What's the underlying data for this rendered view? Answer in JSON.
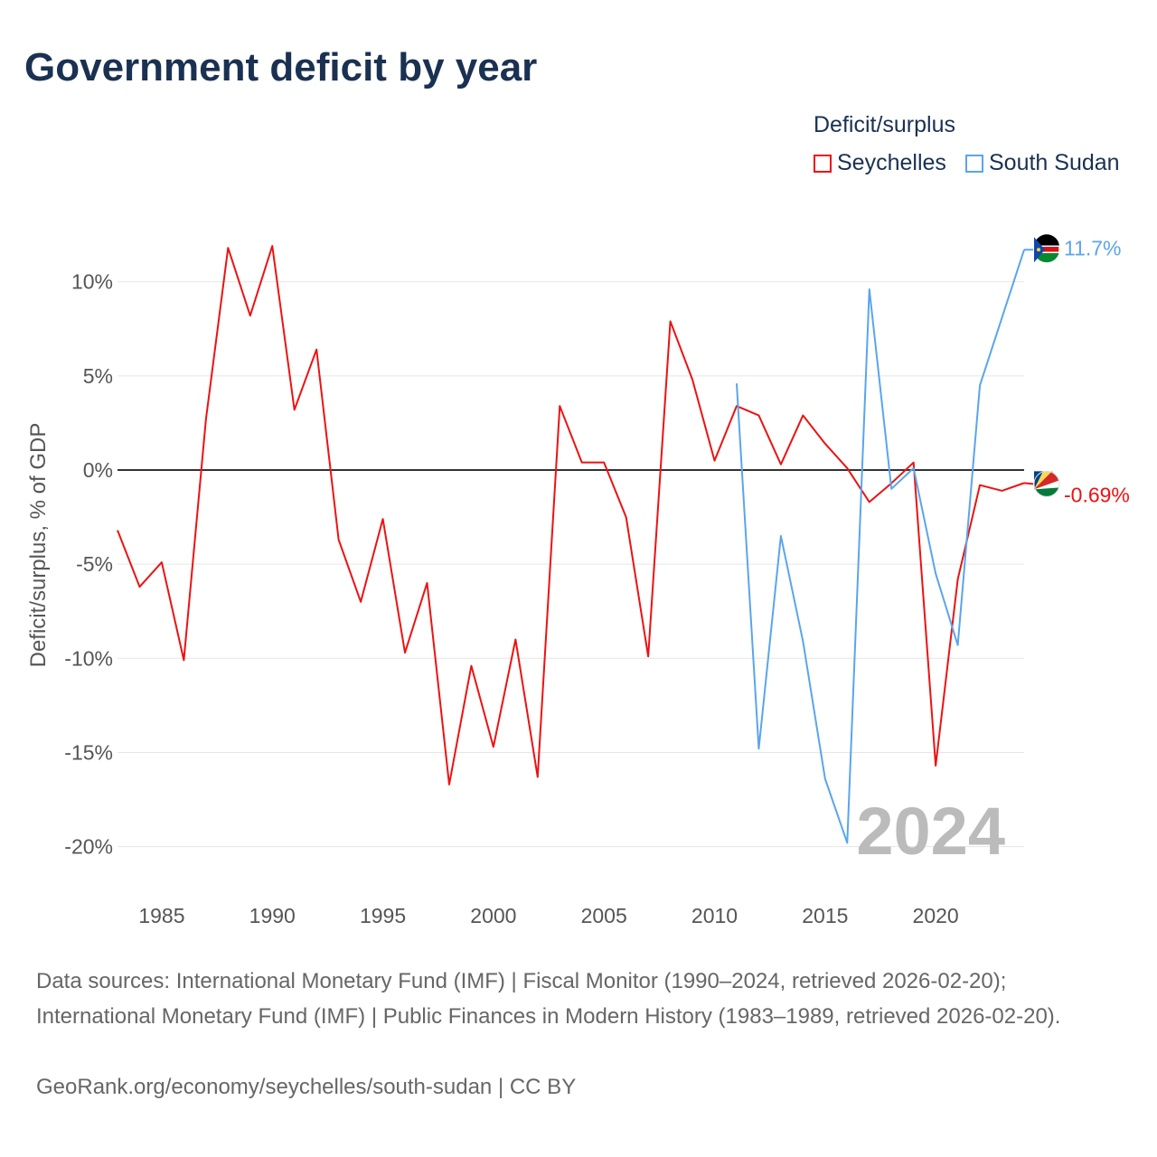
{
  "chart_data": {
    "type": "line",
    "title": "Government deficit by year",
    "ylabel": "Deficit/surplus, % of GDP",
    "xlabel": "",
    "legend_title": "Deficit/surplus",
    "legend_placement": "top-right",
    "xlim": [
      1983,
      2024
    ],
    "ylim": [
      -20,
      12
    ],
    "yticks": [
      10,
      5,
      0,
      -5,
      -10,
      -15,
      -20
    ],
    "ytick_labels": [
      "10%",
      "5%",
      "0%",
      "-5%",
      "-10%",
      "-15%",
      "-20%"
    ],
    "xticks": [
      1985,
      1990,
      1995,
      2000,
      2005,
      2010,
      2015,
      2020
    ],
    "xtick_labels": [
      "1985",
      "1990",
      "1995",
      "2000",
      "2005",
      "2010",
      "2015",
      "2020"
    ],
    "year_watermark": "2024",
    "series": [
      {
        "name": "Seychelles",
        "color": "#ee1111",
        "end_label": "-0.69%",
        "x": [
          1983,
          1984,
          1985,
          1986,
          1987,
          1988,
          1989,
          1990,
          1991,
          1992,
          1993,
          1994,
          1995,
          1996,
          1997,
          1998,
          1999,
          2000,
          2001,
          2002,
          2003,
          2004,
          2005,
          2006,
          2007,
          2008,
          2009,
          2010,
          2011,
          2012,
          2013,
          2014,
          2015,
          2016,
          2017,
          2018,
          2019,
          2020,
          2021,
          2022,
          2023,
          2024
        ],
        "values": [
          -3.2,
          -6.2,
          -4.9,
          -10.1,
          2.7,
          11.8,
          8.2,
          11.9,
          3.2,
          6.4,
          -3.7,
          -7.0,
          -2.6,
          -9.7,
          -6.0,
          -16.7,
          -10.4,
          -14.7,
          -9.0,
          -16.3,
          3.4,
          0.4,
          0.4,
          -2.5,
          -9.9,
          7.9,
          4.8,
          0.5,
          3.4,
          2.9,
          0.3,
          2.9,
          1.4,
          0.1,
          -1.7,
          -0.7,
          0.4,
          -15.7,
          -5.8,
          -0.8,
          -1.1,
          -0.69
        ]
      },
      {
        "name": "South Sudan",
        "color": "#5aa5ec",
        "end_label": "11.7%",
        "x": [
          2011,
          2012,
          2013,
          2014,
          2015,
          2016,
          2017,
          2018,
          2019,
          2020,
          2021,
          2022,
          2023,
          2024
        ],
        "values": [
          4.6,
          -14.8,
          -3.5,
          -9.1,
          -16.4,
          -19.8,
          9.6,
          -1.0,
          0.1,
          -5.5,
          -9.3,
          4.5,
          8.1,
          11.7
        ]
      }
    ]
  },
  "footer": {
    "sources": "Data sources: International Monetary Fund (IMF) | Fiscal Monitor (1990–2024, retrieved 2026-02-20); International Monetary Fund (IMF) | Public Finances in Modern History (1983–1989, retrieved 2026-02-20).",
    "credit": "GeoRank.org/economy/seychelles/south-sudan | CC BY"
  }
}
